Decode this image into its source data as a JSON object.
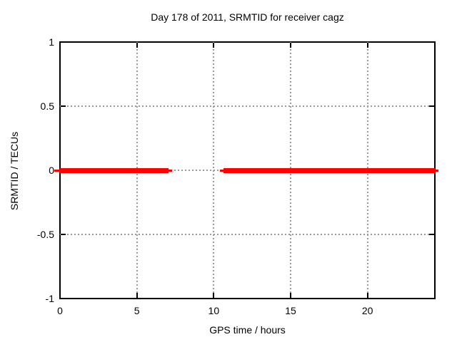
{
  "chart_data": {
    "type": "line",
    "title": "Day 178 of 2011, SRMTID for receiver cagz",
    "xlabel": "GPS time / hours",
    "ylabel": "SRMTID / TECUs",
    "xlim": [
      0,
      24.38
    ],
    "ylim": [
      -1,
      1
    ],
    "x_ticks": [
      0,
      5,
      10,
      15,
      20
    ],
    "y_ticks": [
      1,
      0.5,
      0,
      -0.5,
      -1
    ],
    "grid": true,
    "legend": "none",
    "series": [
      {
        "name": "SRMTID",
        "color": "#ff0000",
        "y_value": 0,
        "style": "thick horizontal line at y=0 with thin overshooting end caps",
        "segments": [
          {
            "x_start": 0.0,
            "x_end": 7.05
          },
          {
            "x_start": 10.62,
            "x_end": 24.38
          }
        ],
        "caps": [
          {
            "x_start": -0.39,
            "x_end": 0.05
          },
          {
            "x_start": 7.05,
            "x_end": 7.3
          },
          {
            "x_start": 10.38,
            "x_end": 10.62
          },
          {
            "x_start": 24.25,
            "x_end": 24.6
          }
        ]
      }
    ],
    "colors": {
      "line": "#ff0000",
      "grid": "#999999",
      "border": "#000000",
      "text": "#000000",
      "background": "#ffffff"
    }
  }
}
